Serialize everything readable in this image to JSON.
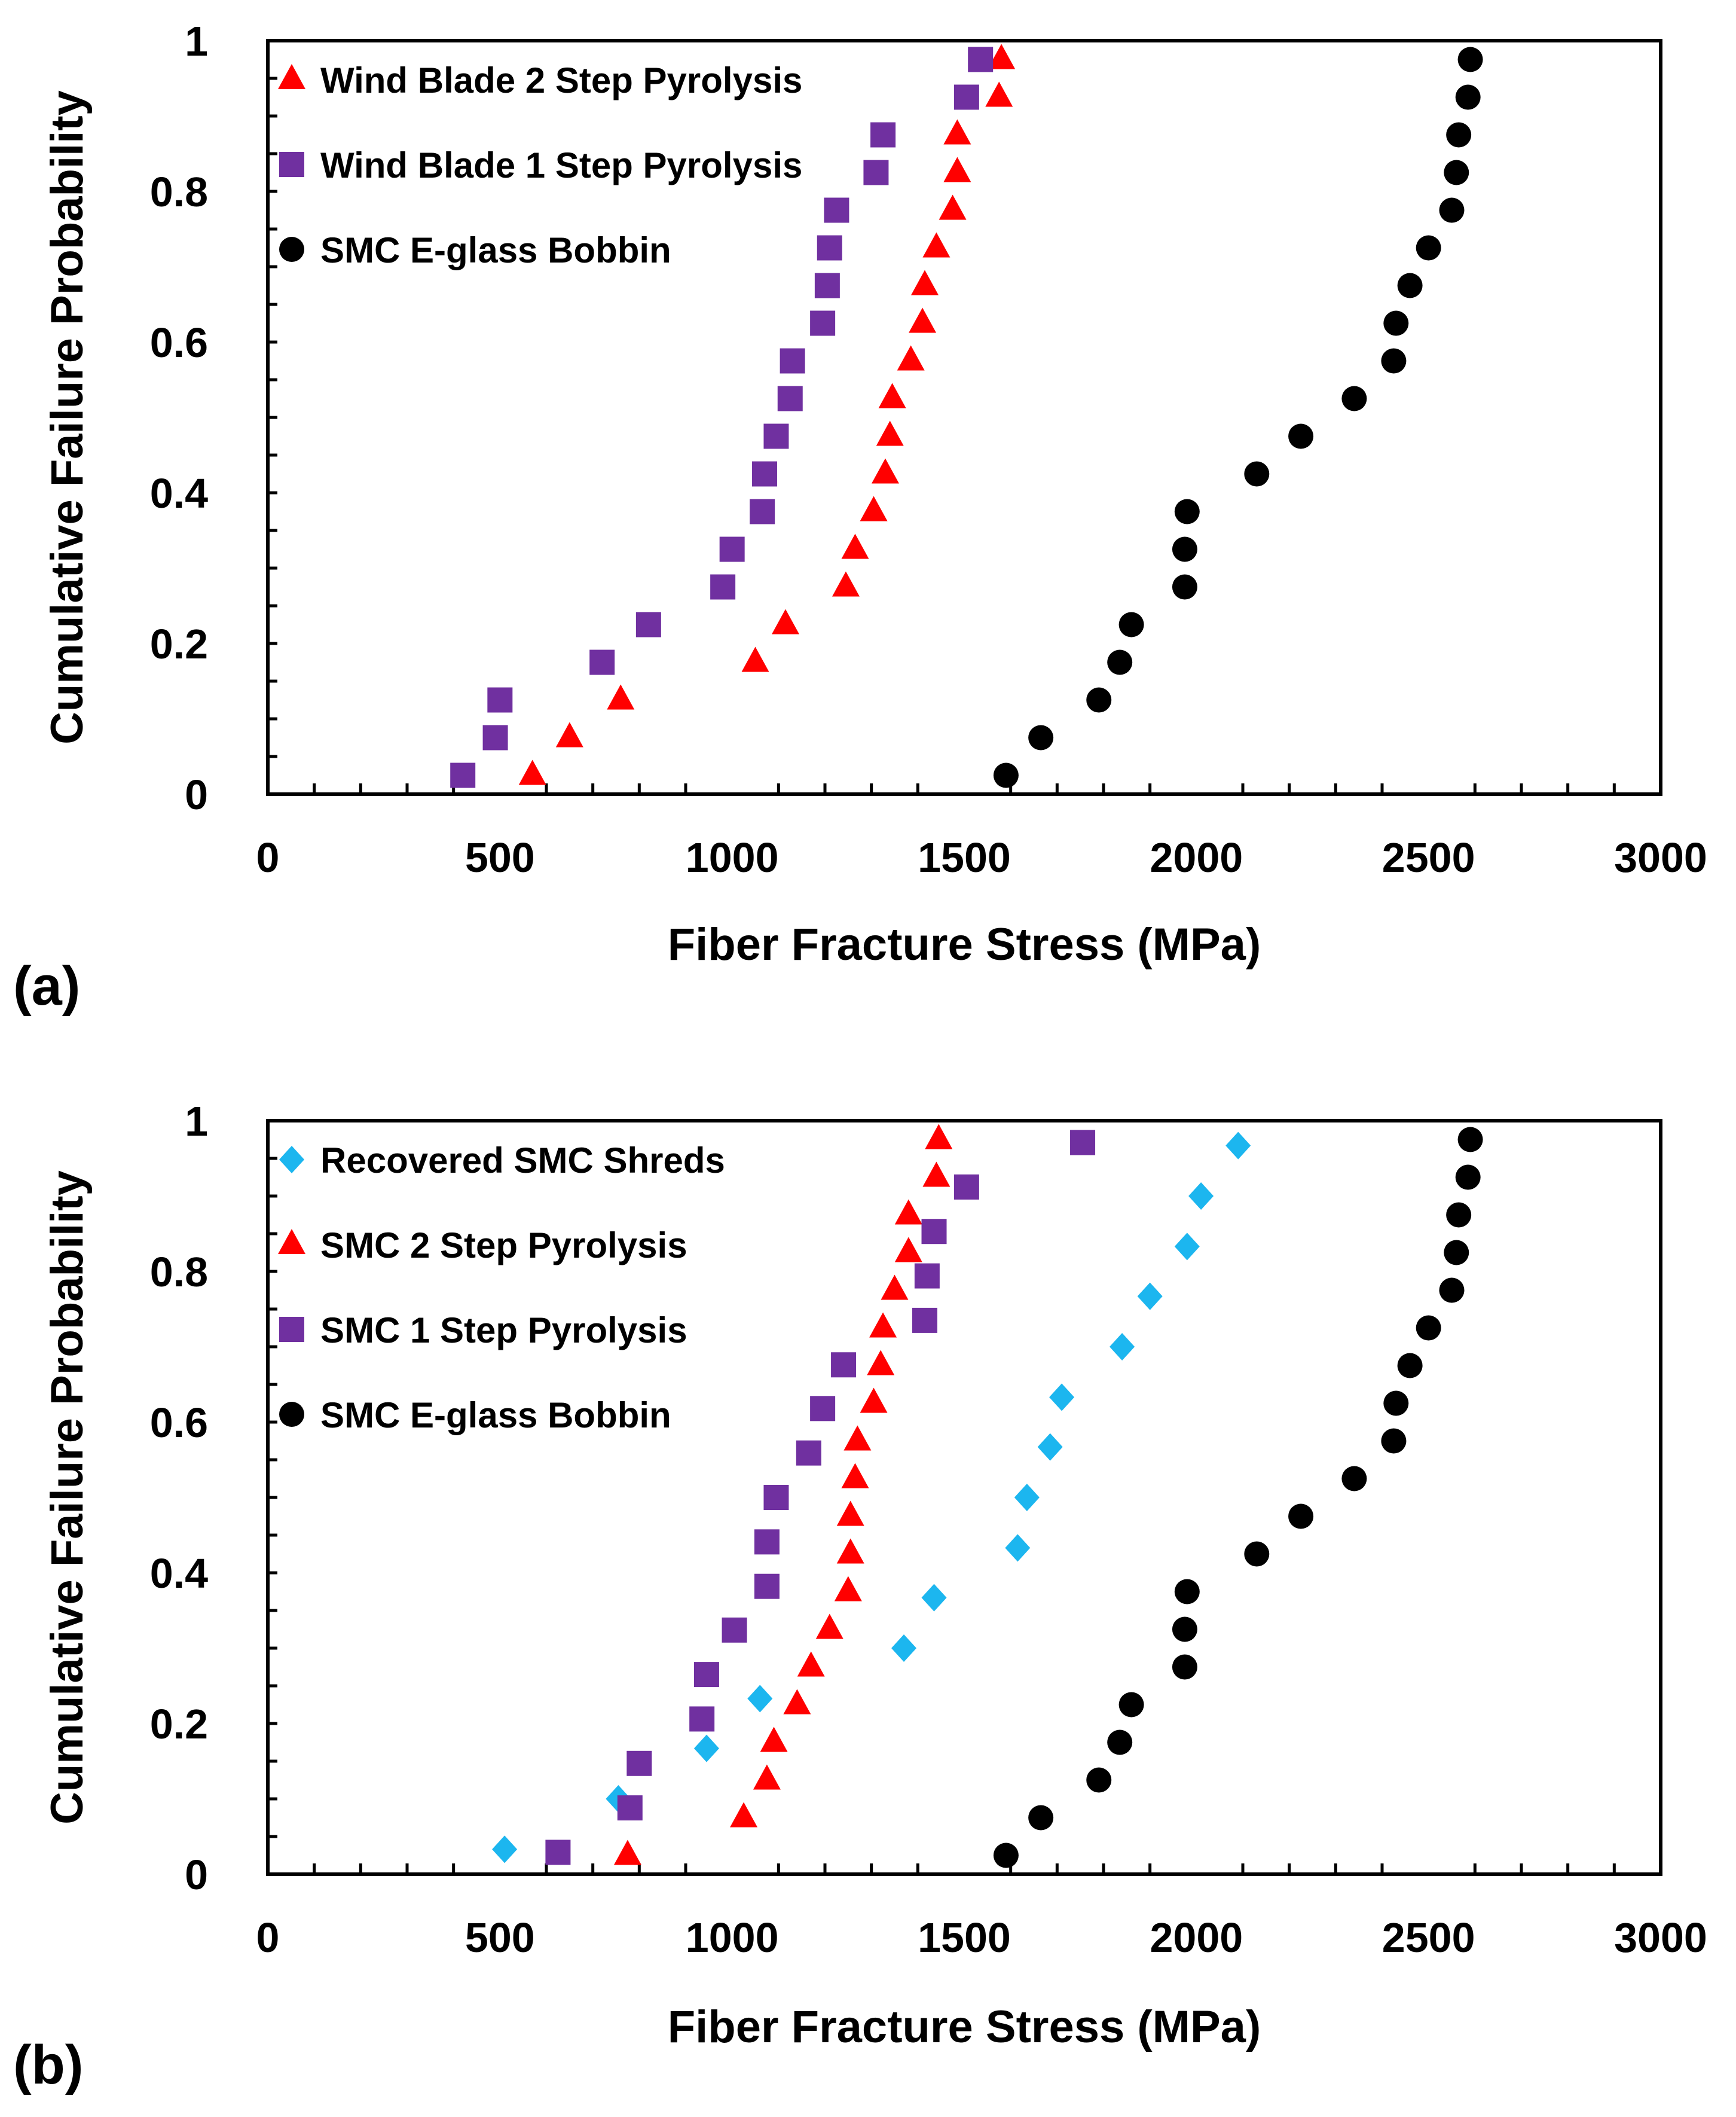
{
  "figure": {
    "panels": [
      {
        "label": "(a)"
      },
      {
        "label": "(b)"
      }
    ]
  },
  "chart_data": [
    {
      "type": "scatter",
      "panel_label": "(a)",
      "title": "",
      "xlabel": "Fiber Fracture Stress (MPa)",
      "ylabel": "Cumulative Failure Probability",
      "xlim": [
        0,
        3000
      ],
      "ylim": [
        0,
        1
      ],
      "xticks": [
        0,
        500,
        1000,
        1500,
        2000,
        2500,
        3000
      ],
      "yticks": [
        0,
        0.2,
        0.4,
        0.6,
        0.8,
        1
      ],
      "ytick_labels": [
        "0",
        "0.2",
        "0.4",
        "0.6",
        "0.8",
        "1"
      ],
      "grid": false,
      "legend_position": "top-left",
      "series": [
        {
          "name": "Wind Blade 2 Step Pyrolysis",
          "marker": "triangle",
          "color": "#ff0000",
          "x": [
            570,
            650,
            760,
            1050,
            1115,
            1245,
            1265,
            1305,
            1330,
            1340,
            1345,
            1385,
            1410,
            1415,
            1440,
            1475,
            1485,
            1485,
            1575,
            1580
          ],
          "y": [
            0.025,
            0.075,
            0.125,
            0.175,
            0.225,
            0.275,
            0.325,
            0.375,
            0.425,
            0.475,
            0.525,
            0.575,
            0.625,
            0.675,
            0.725,
            0.775,
            0.825,
            0.875,
            0.925,
            0.975
          ]
        },
        {
          "name": "Wind Blade 1 Step Pyrolysis",
          "marker": "square",
          "color": "#7030a0",
          "x": [
            420,
            490,
            500,
            720,
            820,
            980,
            1000,
            1065,
            1070,
            1095,
            1125,
            1130,
            1195,
            1205,
            1210,
            1225,
            1310,
            1325,
            1505,
            1535
          ],
          "y": [
            0.025,
            0.075,
            0.125,
            0.175,
            0.225,
            0.275,
            0.325,
            0.375,
            0.425,
            0.475,
            0.525,
            0.575,
            0.625,
            0.675,
            0.725,
            0.775,
            0.825,
            0.875,
            0.925,
            0.975
          ]
        },
        {
          "name": "SMC E-glass Bobbin",
          "marker": "circle",
          "color": "#000000",
          "x": [
            1590,
            1665,
            1790,
            1835,
            1860,
            1975,
            1975,
            1980,
            2130,
            2225,
            2340,
            2425,
            2430,
            2460,
            2500,
            2550,
            2560,
            2565,
            2585,
            2590
          ],
          "y": [
            0.025,
            0.075,
            0.125,
            0.175,
            0.225,
            0.275,
            0.325,
            0.375,
            0.425,
            0.475,
            0.525,
            0.575,
            0.625,
            0.675,
            0.725,
            0.775,
            0.825,
            0.875,
            0.925,
            0.975
          ]
        }
      ]
    },
    {
      "type": "scatter",
      "panel_label": "(b)",
      "title": "",
      "xlabel": "Fiber Fracture Stress (MPa)",
      "ylabel": "Cumulative Failure Probability",
      "xlim": [
        0,
        3000
      ],
      "ylim": [
        0,
        1
      ],
      "xticks": [
        0,
        500,
        1000,
        1500,
        2000,
        2500,
        3000
      ],
      "yticks": [
        0,
        0.2,
        0.4,
        0.6,
        0.8,
        1
      ],
      "ytick_labels": [
        "0",
        "0.2",
        "0.4",
        "0.6",
        "0.8",
        "1"
      ],
      "grid": false,
      "legend_position": "top-left",
      "series": [
        {
          "name": "Recovered SMC Shreds",
          "marker": "diamond",
          "color": "#1cb6ef",
          "x": [
            510,
            755,
            945,
            1060,
            1370,
            1435,
            1615,
            1635,
            1685,
            1710,
            1840,
            1900,
            1980,
            2010,
            2090
          ],
          "y": [
            0.033,
            0.1,
            0.167,
            0.233,
            0.3,
            0.367,
            0.433,
            0.5,
            0.567,
            0.633,
            0.7,
            0.767,
            0.833,
            0.9,
            0.967
          ]
        },
        {
          "name": "SMC 2 Step Pyrolysis",
          "marker": "triangle",
          "color": "#ff0000",
          "x": [
            775,
            1025,
            1075,
            1090,
            1140,
            1170,
            1210,
            1250,
            1255,
            1255,
            1265,
            1270,
            1305,
            1320,
            1325,
            1350,
            1380,
            1380,
            1440,
            1445
          ],
          "y": [
            0.025,
            0.075,
            0.125,
            0.175,
            0.225,
            0.275,
            0.325,
            0.375,
            0.425,
            0.475,
            0.525,
            0.575,
            0.625,
            0.675,
            0.725,
            0.775,
            0.825,
            0.875,
            0.925,
            0.975
          ]
        },
        {
          "name": "SMC 1 Step Pyrolysis",
          "marker": "square",
          "color": "#7030a0",
          "x": [
            625,
            780,
            800,
            935,
            945,
            1005,
            1075,
            1075,
            1095,
            1165,
            1195,
            1240,
            1415,
            1420,
            1435,
            1505,
            1755
          ],
          "y": [
            0.029,
            0.088,
            0.147,
            0.206,
            0.265,
            0.324,
            0.382,
            0.441,
            0.5,
            0.559,
            0.618,
            0.676,
            0.735,
            0.794,
            0.853,
            0.912,
            0.971
          ]
        },
        {
          "name": "SMC E-glass Bobbin",
          "marker": "circle",
          "color": "#000000",
          "x": [
            1590,
            1665,
            1790,
            1835,
            1860,
            1975,
            1975,
            1980,
            2130,
            2225,
            2340,
            2425,
            2430,
            2460,
            2500,
            2550,
            2560,
            2565,
            2585,
            2590
          ],
          "y": [
            0.025,
            0.075,
            0.125,
            0.175,
            0.225,
            0.275,
            0.325,
            0.375,
            0.425,
            0.475,
            0.525,
            0.575,
            0.625,
            0.675,
            0.725,
            0.775,
            0.825,
            0.875,
            0.925,
            0.975
          ]
        }
      ]
    }
  ]
}
